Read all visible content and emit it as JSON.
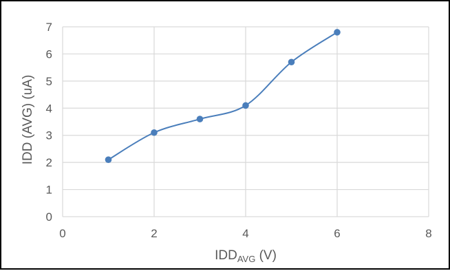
{
  "chart_data": {
    "type": "line",
    "title": "",
    "xlabel": {
      "main": "IDD",
      "subscript": "AVG",
      "suffix": " (V)"
    },
    "ylabel": "IDD (AVG) (uA)",
    "xlim": [
      0,
      8
    ],
    "ylim": [
      0,
      7
    ],
    "xticks": [
      0,
      2,
      4,
      6,
      8
    ],
    "yticks": [
      0,
      1,
      2,
      3,
      4,
      5,
      6,
      7
    ],
    "grid": true,
    "legend": "none",
    "series": [
      {
        "x": [
          1,
          2,
          3,
          4,
          5,
          6
        ],
        "y": [
          2.1,
          3.1,
          3.6,
          4.1,
          5.7,
          6.8
        ],
        "smooth": true,
        "marker": "circle",
        "color": "#4a7ebb"
      }
    ],
    "colors": {
      "grid": "#d9d9d9",
      "axis_text": "#595959",
      "frame": "#000000"
    }
  }
}
